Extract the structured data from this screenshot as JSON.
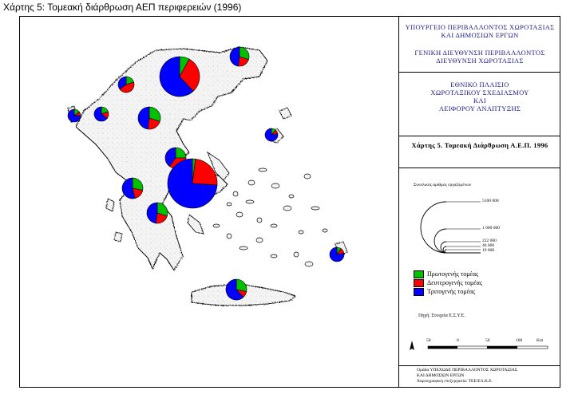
{
  "caption": "Χάρτης 5: Τομεακή διάρθρωση ΑΕΠ περιφερειών (1996)",
  "panel": {
    "ministry_line1": "ΥΠΟΥΡΓΕΙΟ ΠΕΡΙΒΑΛΛΟΝΤΟΣ ΧΩΡΟΤΑΞΙΑΣ",
    "ministry_line2": "ΚΑΙ ΔΗΜΟΣΙΩΝ ΕΡΓΩΝ",
    "directorate_line1": "ΓΕΝΙΚΗ ΔΙΕΥΘΥΝΣΗ ΠΕΡΙΒΑΛΛΟΝΤΟΣ",
    "directorate_line2": "ΔΙΕΥΘΥΝΣΗ ΧΩΡΟΤΑΞΙΑΣ",
    "framework_line1": "ΕΘΝΙΚΟ ΠΛΑΙΣΙΟ",
    "framework_line2": "ΧΩΡΟΤΑΞΙΚΟΥ ΣΧΕΔΙΑΣΜΟΥ",
    "framework_line3": "ΚΑΙ",
    "framework_line4": "ΑΕΙΦΟΡΟΥ ΑΝΑΠΤΥΞΗΣ",
    "map_title": "Χάρτης 5. Τομεακή Διάρθρωση Α.Ε.Π. 1996",
    "size_legend_title": "Συνολικός αριθμός εργαζομένων",
    "size_values": [
      "5100 000",
      "1 000 000",
      "222 000",
      "46 000",
      "19 000"
    ],
    "source": "Πηγή: Στοιχεία Ε.Σ.Υ.Ε.",
    "scale_labels": [
      "50",
      "0",
      "50",
      "100",
      "Km"
    ],
    "credit_line1": "Ομάδα ΥΠΕΧΩΔΕ ΠΕΡΙΒΑΛΛΟΝΤΟΣ ΧΩΡΟΤΑΞΙΑΣ",
    "credit_line2": "ΚΑΙ ΔΗΜΟΣΙΩΝ ΕΡΓΩΝ",
    "credit_line3": "Χαρτογραφική επεξεργασία: ΤΕΕ/ΕΛ.Κ.Ε."
  },
  "legend": [
    {
      "label": "Πρωτογενής τομέας",
      "color": "#00c000"
    },
    {
      "label": "Δευτερογενής τομέας",
      "color": "#ff0000"
    },
    {
      "label": "Τριτογενής τομέας",
      "color": "#0000ff"
    }
  ],
  "colors": {
    "primary": "#00c000",
    "secondary": "#ff0000",
    "tertiary": "#0000ff",
    "land_fill": "#f4f4f4",
    "shade": "#cfcfcf"
  },
  "chart_data": {
    "type": "pie",
    "series_names": [
      "Πρωτογενής τομέας",
      "Δευτερογενής τομέας",
      "Τριτογενής τομέας"
    ],
    "regions": [
      {
        "id": "central-macedonia",
        "shares": [
          0.08,
          0.3,
          0.62
        ]
      },
      {
        "id": "east-macedonia-thrace",
        "shares": [
          0.3,
          0.22,
          0.48
        ]
      },
      {
        "id": "west-macedonia",
        "shares": [
          0.2,
          0.45,
          0.35
        ]
      },
      {
        "id": "epirus",
        "shares": [
          0.2,
          0.15,
          0.65
        ]
      },
      {
        "id": "corfu-ionian",
        "shares": [
          0.15,
          0.1,
          0.75
        ]
      },
      {
        "id": "thessaly",
        "shares": [
          0.3,
          0.22,
          0.48
        ]
      },
      {
        "id": "central-greece",
        "shares": [
          0.25,
          0.35,
          0.4
        ]
      },
      {
        "id": "attica",
        "shares": [
          0.02,
          0.24,
          0.74
        ]
      },
      {
        "id": "western-greece",
        "shares": [
          0.28,
          0.18,
          0.54
        ]
      },
      {
        "id": "peloponnese",
        "shares": [
          0.3,
          0.22,
          0.48
        ]
      },
      {
        "id": "north-aegean",
        "shares": [
          0.12,
          0.1,
          0.78
        ]
      },
      {
        "id": "south-aegean",
        "shares": [
          0.1,
          0.12,
          0.78
        ]
      },
      {
        "id": "crete",
        "shares": [
          0.28,
          0.1,
          0.62
        ]
      }
    ]
  }
}
